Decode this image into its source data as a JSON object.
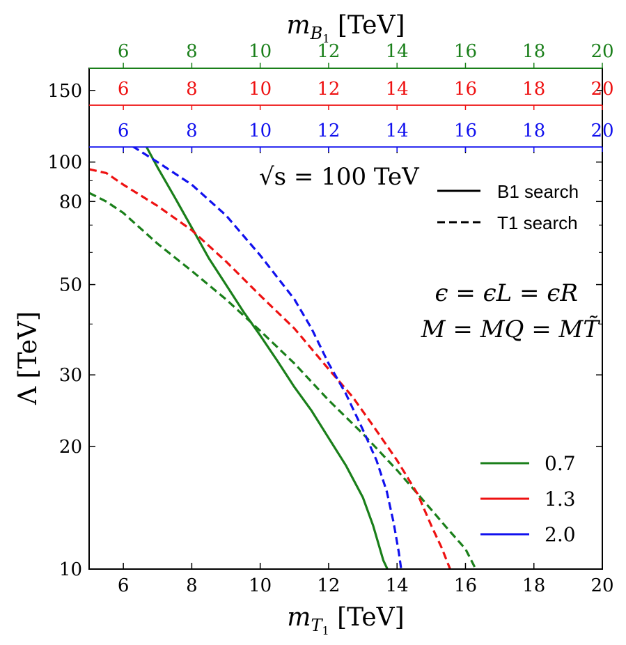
{
  "chart_data": {
    "type": "line",
    "xlabel_main": "m",
    "xlabel_sub": "T",
    "xlabel_subsub": "1",
    "xlabel_unit": "[TeV]",
    "toplabel_main": "m",
    "toplabel_sub": "B",
    "toplabel_subsub": "1",
    "toplabel_unit": "[TeV]",
    "ylabel": "Λ [TeV]",
    "xlim": [
      5,
      20
    ],
    "ylim": [
      10,
      170
    ],
    "y_scale": "log",
    "x_ticks": [
      "6",
      "8",
      "10",
      "12",
      "14",
      "16",
      "18",
      "20"
    ],
    "x_tick_values": [
      6,
      8,
      10,
      12,
      14,
      16,
      18,
      20
    ],
    "y_ticks": [
      "10",
      "20",
      "30",
      "50",
      "80",
      "100",
      "150"
    ],
    "y_tick_values": [
      10,
      20,
      30,
      50,
      80,
      100,
      150
    ],
    "top_axes": [
      {
        "color": "#1a7f1a",
        "ticks": [
          "6",
          "8",
          "10",
          "12",
          "14",
          "16",
          "18",
          "20"
        ]
      },
      {
        "color": "#ee1111",
        "ticks": [
          "6",
          "8",
          "10",
          "12",
          "14",
          "16",
          "18",
          "20"
        ]
      },
      {
        "color": "#1111ee",
        "ticks": [
          "6",
          "8",
          "10",
          "12",
          "14",
          "16",
          "18",
          "20"
        ]
      }
    ],
    "annotations": {
      "energy": "√s = 100 TeV",
      "eps_line": "ϵ = ϵL = ϵR",
      "mass_line": "M = MQ = MT̃"
    },
    "style_legend": [
      {
        "label": "B1 search",
        "dash": "solid"
      },
      {
        "label": "T1 search",
        "dash": "dashed"
      }
    ],
    "color_legend": [
      {
        "label": "0.7",
        "color": "#1a7f1a"
      },
      {
        "label": "1.3",
        "color": "#ee1111"
      },
      {
        "label": "2.0",
        "color": "#1111ee"
      }
    ],
    "series": [
      {
        "color": "#1a7f1a",
        "dash": "solid",
        "points": [
          [
            6.25,
            125
          ],
          [
            6.6,
            112
          ],
          [
            7.0,
            97
          ],
          [
            7.5,
            82
          ],
          [
            8.0,
            69
          ],
          [
            8.5,
            58
          ],
          [
            9.0,
            50
          ],
          [
            9.5,
            43
          ],
          [
            10.0,
            37.5
          ],
          [
            10.5,
            32.5
          ],
          [
            11.0,
            28
          ],
          [
            11.5,
            24.5
          ],
          [
            12.0,
            21
          ],
          [
            12.5,
            18
          ],
          [
            13.0,
            15
          ],
          [
            13.3,
            12.8
          ],
          [
            13.6,
            10.5
          ],
          [
            13.72,
            10
          ]
        ]
      },
      {
        "color": "#1a7f1a",
        "dash": "dashed",
        "points": [
          [
            5.0,
            84
          ],
          [
            5.5,
            80
          ],
          [
            6.0,
            75
          ],
          [
            7.0,
            63
          ],
          [
            8.0,
            54
          ],
          [
            9.0,
            46
          ],
          [
            10.0,
            38.5
          ],
          [
            11.0,
            32
          ],
          [
            12.0,
            26
          ],
          [
            13.0,
            21.5
          ],
          [
            14.0,
            17.5
          ],
          [
            15.0,
            14
          ],
          [
            15.5,
            12.5
          ],
          [
            16.0,
            11.2
          ],
          [
            16.3,
            10
          ]
        ]
      },
      {
        "color": "#ee1111",
        "dash": "solid",
        "points": []
      },
      {
        "color": "#ee1111",
        "dash": "dashed",
        "points": [
          [
            5.0,
            96
          ],
          [
            5.5,
            94
          ],
          [
            6.0,
            88
          ],
          [
            7.0,
            78
          ],
          [
            8.0,
            68
          ],
          [
            9.0,
            57
          ],
          [
            10.0,
            47
          ],
          [
            11.0,
            39
          ],
          [
            12.0,
            31
          ],
          [
            12.7,
            26.5
          ],
          [
            13.3,
            22.5
          ],
          [
            14.0,
            18.5
          ],
          [
            14.6,
            15.3
          ],
          [
            15.0,
            12.8
          ],
          [
            15.3,
            11.3
          ],
          [
            15.55,
            10
          ]
        ]
      },
      {
        "color": "#1111ee",
        "dash": "solid",
        "points": []
      },
      {
        "color": "#1111ee",
        "dash": "dashed",
        "points": [
          [
            5.0,
            121
          ],
          [
            5.5,
            119
          ],
          [
            6.0,
            113
          ],
          [
            7.0,
            100
          ],
          [
            8.0,
            88
          ],
          [
            9.0,
            74
          ],
          [
            10.0,
            59
          ],
          [
            11.0,
            46
          ],
          [
            11.5,
            39
          ],
          [
            12.0,
            32
          ],
          [
            12.5,
            27
          ],
          [
            13.0,
            22
          ],
          [
            13.4,
            18.5
          ],
          [
            13.7,
            15.5
          ],
          [
            13.9,
            13
          ],
          [
            14.05,
            11
          ],
          [
            14.12,
            10
          ]
        ]
      }
    ]
  }
}
